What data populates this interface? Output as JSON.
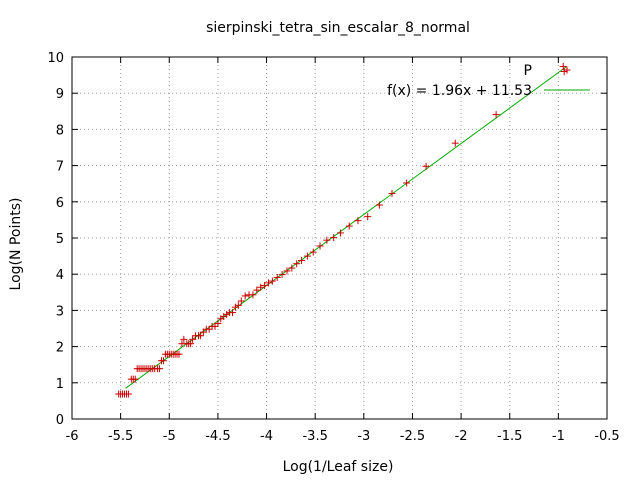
{
  "chart_data": {
    "type": "scatter",
    "title": "sierpinski_tetra_sin_escalar_8_normal",
    "xlabel": "Log(1/Leaf size)",
    "ylabel": "Log(N Points)",
    "xlim": [
      -6,
      -0.5
    ],
    "ylim": [
      0,
      10
    ],
    "x_ticks": [
      -6,
      -5.5,
      -5,
      -4.5,
      -4,
      -3.5,
      -3,
      -2.5,
      -2,
      -1.5,
      -1,
      -0.5
    ],
    "x_tick_labels": [
      "-6",
      "-5.5",
      "-5",
      "-4.5",
      "-4",
      "-3.5",
      "-3",
      "-2.5",
      "-2",
      "-1.5",
      "-1",
      "-0.5"
    ],
    "y_ticks": [
      0,
      1,
      2,
      3,
      4,
      5,
      6,
      7,
      8,
      9,
      10
    ],
    "y_tick_labels": [
      "0",
      "1",
      "2",
      "3",
      "4",
      "5",
      "6",
      "7",
      "8",
      "9",
      "10"
    ],
    "grid": true,
    "legend_placement": "top-right",
    "series": [
      {
        "name": "P",
        "kind": "points",
        "marker": "plus",
        "color": "#cc0000",
        "x": [
          -5.52,
          -5.5,
          -5.48,
          -5.46,
          -5.44,
          -5.42,
          -5.39,
          -5.37,
          -5.35,
          -5.33,
          -5.31,
          -5.29,
          -5.27,
          -5.25,
          -5.23,
          -5.21,
          -5.19,
          -5.17,
          -5.15,
          -5.12,
          -5.1,
          -5.08,
          -5.06,
          -5.04,
          -5.02,
          -5.0,
          -4.98,
          -4.96,
          -4.94,
          -4.92,
          -4.9,
          -4.87,
          -4.85,
          -4.82,
          -4.8,
          -4.78,
          -4.76,
          -4.73,
          -4.7,
          -4.68,
          -4.65,
          -4.62,
          -4.59,
          -4.56,
          -4.53,
          -4.5,
          -4.47,
          -4.44,
          -4.41,
          -4.38,
          -4.35,
          -4.32,
          -4.29,
          -4.26,
          -4.22,
          -4.18,
          -4.14,
          -4.1,
          -4.06,
          -4.02,
          -3.98,
          -3.94,
          -3.89,
          -3.84,
          -3.79,
          -3.74,
          -3.69,
          -3.64,
          -3.58,
          -3.52,
          -3.45,
          -3.38,
          -3.31,
          -3.24,
          -3.15,
          -3.06,
          -2.96,
          -2.84,
          -2.71,
          -2.56,
          -2.36,
          -2.06,
          -1.64,
          -0.95,
          -0.94
        ],
        "y": [
          0.69,
          0.69,
          0.69,
          0.69,
          0.69,
          0.69,
          1.1,
          1.1,
          1.1,
          1.39,
          1.39,
          1.39,
          1.39,
          1.39,
          1.39,
          1.39,
          1.39,
          1.39,
          1.39,
          1.39,
          1.39,
          1.61,
          1.61,
          1.79,
          1.79,
          1.79,
          1.79,
          1.79,
          1.79,
          1.79,
          1.79,
          2.08,
          2.2,
          2.08,
          2.08,
          2.08,
          2.2,
          2.3,
          2.3,
          2.3,
          2.4,
          2.48,
          2.48,
          2.56,
          2.56,
          2.64,
          2.77,
          2.83,
          2.89,
          2.94,
          2.94,
          3.09,
          3.14,
          3.26,
          3.4,
          3.43,
          3.43,
          3.56,
          3.64,
          3.69,
          3.76,
          3.81,
          3.91,
          3.99,
          4.09,
          4.17,
          4.29,
          4.38,
          4.5,
          4.61,
          4.78,
          4.94,
          5.01,
          5.14,
          5.33,
          5.48,
          5.59,
          5.91,
          6.23,
          6.52,
          6.98,
          7.62,
          8.41,
          9.74,
          9.6
        ]
      },
      {
        "name": "f(x) = 1.96x + 11.53",
        "kind": "line",
        "color": "#00aa00",
        "slope": 1.96,
        "intercept": 11.53,
        "x_range": [
          -5.45,
          -0.92
        ]
      }
    ]
  }
}
